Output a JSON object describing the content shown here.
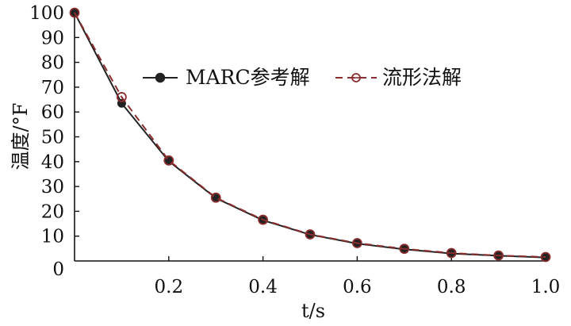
{
  "chart_data": {
    "type": "line",
    "title": "",
    "xlabel": "t/s",
    "ylabel": "温度/°F",
    "xlim": [
      0,
      1.0
    ],
    "ylim": [
      0,
      100
    ],
    "x_ticks": [
      {
        "value": 0.2,
        "label": "0.2"
      },
      {
        "value": 0.4,
        "label": "0.4"
      },
      {
        "value": 0.6,
        "label": "0.6"
      },
      {
        "value": 0.8,
        "label": "0.8"
      },
      {
        "value": 1.0,
        "label": "1.0"
      }
    ],
    "y_ticks": [
      {
        "value": 0,
        "label": "0"
      },
      {
        "value": 10,
        "label": "10"
      },
      {
        "value": 20,
        "label": "20"
      },
      {
        "value": 30,
        "label": "30"
      },
      {
        "value": 40,
        "label": "40"
      },
      {
        "value": 50,
        "label": "50"
      },
      {
        "value": 60,
        "label": "60"
      },
      {
        "value": 70,
        "label": "70"
      },
      {
        "value": 80,
        "label": "80"
      },
      {
        "value": 90,
        "label": "90"
      },
      {
        "value": 100,
        "label": "100"
      }
    ],
    "grid": false,
    "legend_position": "upper-center",
    "series": [
      {
        "name": "MARC参考解",
        "color": "#222222",
        "line_style": "solid",
        "marker": "filled-circle",
        "x": [
          0,
          0.1,
          0.2,
          0.3,
          0.4,
          0.5,
          0.6,
          0.7,
          0.8,
          0.9,
          1.0
        ],
        "y": [
          100,
          63.5,
          40.2,
          25.3,
          16.4,
          10.6,
          7.0,
          4.7,
          3.0,
          2.1,
          1.4
        ]
      },
      {
        "name": "流形法解",
        "color": "#8a2e2e",
        "line_style": "dashed",
        "marker": "hollow-circle",
        "x": [
          0,
          0.1,
          0.2,
          0.3,
          0.4,
          0.5,
          0.6,
          0.7,
          0.8,
          0.9,
          1.0
        ],
        "y": [
          100,
          66.0,
          40.5,
          25.5,
          16.6,
          10.7,
          7.2,
          4.9,
          3.2,
          2.2,
          1.6
        ]
      }
    ]
  }
}
